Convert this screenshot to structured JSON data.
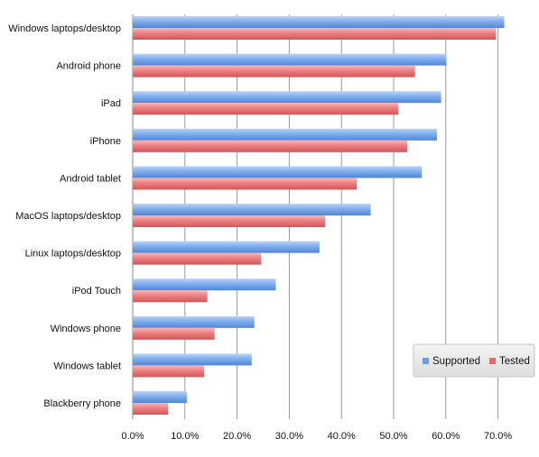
{
  "chart_data": {
    "type": "bar",
    "orientation": "horizontal",
    "title": "",
    "xlabel": "",
    "ylabel": "",
    "categories": [
      "Windows laptops/desktop",
      "Android phone",
      "iPad",
      "iPhone",
      "Android tablet",
      "MacOS laptops/desktop",
      "Linux laptops/desktop",
      "iPod Touch",
      "Windows phone",
      "Windows tablet",
      "Blackberry phone"
    ],
    "series": [
      {
        "name": "Supported",
        "color": "#6a9ee6",
        "values": [
          71.2,
          60.1,
          59.1,
          58.3,
          55.4,
          45.6,
          35.8,
          27.4,
          23.3,
          22.8,
          10.4
        ]
      },
      {
        "name": "Tested",
        "color": "#e66a6c",
        "values": [
          69.6,
          54.1,
          50.9,
          52.6,
          42.9,
          36.9,
          24.6,
          14.3,
          15.7,
          13.7,
          6.8
        ]
      }
    ],
    "xlim": [
      0,
      70
    ],
    "x_ticks": [
      "0.0%",
      "10.0%",
      "20.0%",
      "30.0%",
      "40.0%",
      "50.0%",
      "60.0%",
      "70.0%"
    ],
    "grid": true,
    "legend_position": "bottom-right"
  }
}
